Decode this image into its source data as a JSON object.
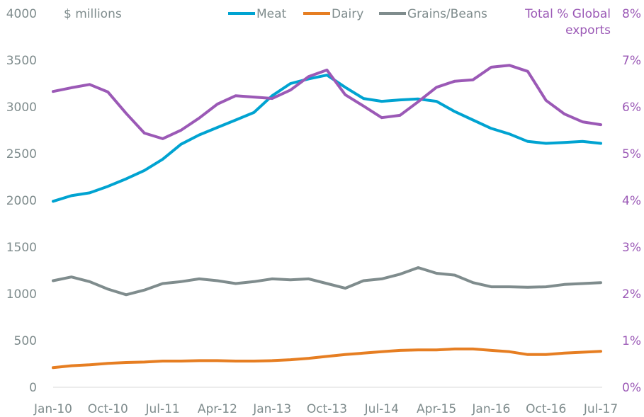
{
  "chart_data": {
    "type": "line",
    "title": "",
    "ylabel": "$ millions",
    "y2label": "Total % Global exports",
    "y2label_lines": [
      "Total % Global",
      "exports"
    ],
    "ylim": [
      0,
      4000
    ],
    "y2lim": [
      0,
      8
    ],
    "yticks": [
      "0",
      "500",
      "1000",
      "1500",
      "2000",
      "2500",
      "3000",
      "3500",
      "4000"
    ],
    "y2ticks": [
      "0%",
      "1%",
      "2%",
      "3%",
      "4%",
      "5%",
      "6%",
      "7%",
      "8%"
    ],
    "xticks": [
      "Jan-10",
      "Oct-10",
      "Jul-11",
      "Apr-12",
      "Jan-13",
      "Oct-13",
      "Jul-14",
      "Apr-15",
      "Jan-16",
      "Oct-16",
      "Jul-17"
    ],
    "grid": false,
    "legend": "top",
    "x": [
      "Jan-10",
      "Apr-10",
      "Jul-10",
      "Oct-10",
      "Jan-11",
      "Apr-11",
      "Jul-11",
      "Oct-11",
      "Jan-12",
      "Apr-12",
      "Jul-12",
      "Oct-12",
      "Jan-13",
      "Apr-13",
      "Jul-13",
      "Oct-13",
      "Jan-14",
      "Apr-14",
      "Jul-14",
      "Oct-14",
      "Jan-15",
      "Apr-15",
      "Jul-15",
      "Oct-15",
      "Jan-16",
      "Apr-16",
      "Jul-16",
      "Oct-16",
      "Jan-17",
      "Apr-17",
      "Jul-17"
    ],
    "series": [
      {
        "name": "Meat",
        "axis": "left",
        "color": "#00a3d1",
        "values": [
          1990,
          2050,
          2080,
          2150,
          2230,
          2320,
          2440,
          2600,
          2700,
          2780,
          2860,
          2940,
          3120,
          3250,
          3300,
          3340,
          3210,
          3090,
          3060,
          3075,
          3085,
          3060,
          2950,
          2860,
          2770,
          2710,
          2630,
          2610,
          2620,
          2630,
          2610
        ]
      },
      {
        "name": "Dairy",
        "axis": "left",
        "color": "#e67e22",
        "values": [
          210,
          230,
          240,
          255,
          265,
          270,
          280,
          280,
          285,
          285,
          280,
          280,
          285,
          295,
          310,
          330,
          350,
          365,
          380,
          395,
          400,
          400,
          410,
          410,
          395,
          380,
          350,
          350,
          365,
          375,
          385
        ]
      },
      {
        "name": "Grains/Beans",
        "axis": "left",
        "color": "#7f8c8d",
        "values": [
          1140,
          1180,
          1130,
          1050,
          990,
          1040,
          1110,
          1130,
          1160,
          1140,
          1110,
          1130,
          1160,
          1150,
          1160,
          1110,
          1060,
          1140,
          1160,
          1210,
          1280,
          1220,
          1200,
          1120,
          1075,
          1075,
          1070,
          1075,
          1100,
          1110,
          1120
        ]
      },
      {
        "name": "Total % Global exports",
        "axis": "right",
        "color": "#9b59b6",
        "values": [
          6.33,
          6.41,
          6.48,
          6.32,
          5.86,
          5.44,
          5.32,
          5.5,
          5.76,
          6.06,
          6.24,
          6.21,
          6.18,
          6.36,
          6.65,
          6.79,
          6.26,
          6.02,
          5.77,
          5.82,
          6.11,
          6.42,
          6.55,
          6.58,
          6.85,
          6.89,
          6.76,
          6.14,
          5.85,
          5.68,
          5.62
        ]
      }
    ],
    "legend_entries": [
      "Meat",
      "Dairy",
      "Grains/Beans"
    ]
  }
}
